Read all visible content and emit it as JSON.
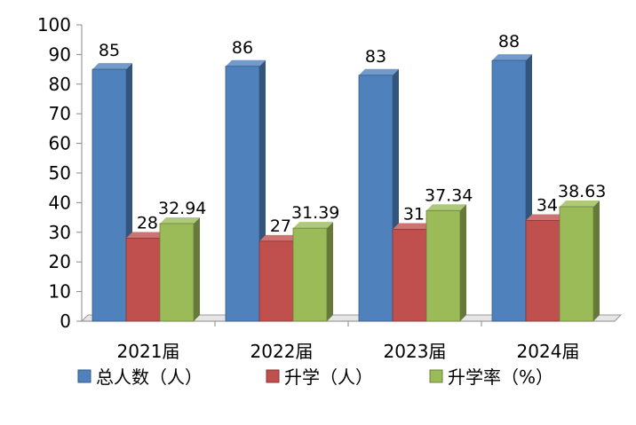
{
  "chart_data": {
    "type": "bar",
    "title": "",
    "xlabel": "",
    "ylabel": "",
    "ylim": [
      0,
      100
    ],
    "yticks": [
      0,
      10,
      20,
      30,
      40,
      50,
      60,
      70,
      80,
      90,
      100
    ],
    "categories": [
      "2021届",
      "2022届",
      "2023届",
      "2024届"
    ],
    "series": [
      {
        "name": "总人数（人）",
        "values": [
          85,
          86,
          83,
          88
        ],
        "labels": [
          "85",
          "86",
          "83",
          "88"
        ],
        "color": "#4f81bd"
      },
      {
        "name": "升学（人）",
        "values": [
          28,
          27,
          31,
          34
        ],
        "labels": [
          "28",
          "27",
          "31",
          "34"
        ],
        "color": "#c0504d"
      },
      {
        "name": "升学率（%）",
        "values": [
          32.94,
          31.39,
          37.34,
          38.63
        ],
        "labels": [
          "32.94",
          "31.39",
          "37.34",
          "38.63"
        ],
        "color": "#9bbb59"
      }
    ],
    "grid": false,
    "legend_position": "bottom",
    "style": "3d-bar"
  }
}
